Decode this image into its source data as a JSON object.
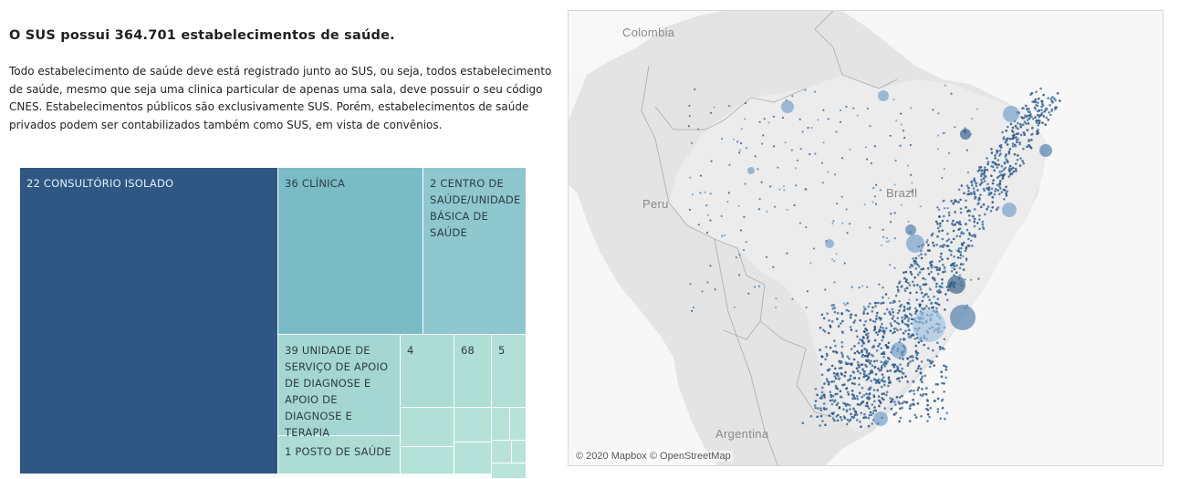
{
  "header": {
    "title": "O SUS possui 364.701 estabelecimentos de saúde.",
    "description_lines": [
      "Todo estabelecimento de saúde deve está registrado junto ao SUS, ou seja, todos estabelecimento",
      "de saúde, mesmo que seja uma clinica particular de apenas uma sala, deve possuir o seu código",
      "CNES.  Estabelecimentos públicos são exclusivamente SUS. Porém, estabelecimentos de saúde",
      "privados podem ser contabilizados também como SUS, em vista de convênios."
    ]
  },
  "treemap": {
    "tiles": [
      {
        "label": "22 CONSULTÓRIO ISOLADO",
        "color": "#2e5784"
      },
      {
        "label": "36 CLÍNICA",
        "color": "#79bcc6"
      },
      {
        "label": "2 CENTRO DE SAÚDE/UNIDADE BÁSICA DE SAÚDE",
        "color": "#8ec8ce"
      },
      {
        "label": "39 UNIDADE DE SERVIÇO DE APOIO DE DIAGNOSE E APOIO DE DIAGNOSE  E  TERAPIA",
        "color": "#a4d7d3"
      },
      {
        "label": "1 POSTO DE SAÚDE",
        "color": "#acdcd4"
      },
      {
        "label": "4",
        "color": "#acdcd4"
      },
      {
        "label": "68",
        "color": "#afded5"
      },
      {
        "label": "5",
        "color": "#b2dfd6"
      },
      {
        "label": "",
        "color": "#b2dfd6"
      },
      {
        "label": "",
        "color": "#b3e0d7"
      },
      {
        "label": "",
        "color": "#b5e1d8"
      },
      {
        "label": "",
        "color": "#b5e1d8"
      },
      {
        "label": "",
        "color": "#b7e2d9"
      },
      {
        "label": "",
        "color": "#b8e3da"
      },
      {
        "label": "",
        "color": "#b9e3da"
      },
      {
        "label": "",
        "color": "#b9e3da"
      },
      {
        "label": "",
        "color": "#bae4db"
      }
    ]
  },
  "map": {
    "labels": {
      "colombia": "Colombia",
      "peru": "Peru",
      "brazil": "Brazil",
      "argentina": "Argentina"
    },
    "attribution": "© 2020 Mapbox © OpenStreetMap",
    "dot_colors": [
      "#2e5784",
      "#4a78a8",
      "#6f9cc8",
      "#9fc3e2"
    ]
  }
}
